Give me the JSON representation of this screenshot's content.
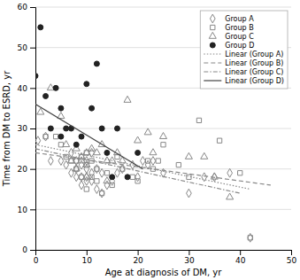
{
  "chart_data": {
    "type": "scatter",
    "xlabel": "Age at diagnosis of DM, yr",
    "ylabel": "Time from DM to ESRD, yr",
    "xlim": [
      0,
      50
    ],
    "ylim": [
      0,
      60
    ],
    "xticks": [
      0,
      10,
      20,
      30,
      40,
      50
    ],
    "yticks": [
      0,
      10,
      20,
      30,
      40,
      50,
      60
    ],
    "grid": true,
    "legend": "upper right",
    "series": [
      {
        "name": "Group A",
        "type": "scatter",
        "marker": "diamond-open",
        "color": "#888888",
        "x": [
          0.5,
          2,
          3,
          5,
          6,
          7,
          7,
          8,
          8,
          8,
          9,
          9,
          9,
          10,
          10,
          10,
          10,
          11,
          11,
          11,
          12,
          12,
          13,
          13,
          14,
          15,
          16,
          17,
          19,
          20,
          21,
          22,
          23,
          25,
          30,
          33,
          35,
          38,
          42
        ],
        "values": [
          27,
          28,
          22,
          22,
          21,
          19,
          24,
          20,
          18,
          22,
          18,
          21,
          16,
          17,
          22,
          18,
          20,
          24,
          19,
          17,
          15,
          20,
          14,
          19,
          16,
          17,
          19,
          20,
          21,
          18,
          22,
          21,
          22,
          19,
          14,
          18,
          18,
          19,
          3
        ]
      },
      {
        "name": "Group B",
        "type": "scatter",
        "marker": "square-open",
        "color": "#888888",
        "x": [
          2,
          4,
          5,
          6,
          7,
          8,
          8,
          9,
          9,
          10,
          10,
          10,
          11,
          11,
          12,
          12,
          13,
          14,
          15,
          16,
          17,
          19,
          20,
          22,
          23,
          24,
          25,
          28,
          30,
          32,
          36,
          40,
          42
        ],
        "values": [
          28,
          28,
          26,
          23,
          22,
          22,
          20,
          23,
          18,
          15,
          21,
          24,
          22,
          18,
          17,
          20,
          14,
          19,
          16,
          23,
          20,
          18,
          17,
          22,
          20,
          22,
          26,
          21,
          18,
          32,
          27,
          19,
          3
        ]
      },
      {
        "name": "Group C",
        "type": "scatter",
        "marker": "triangle-up-open",
        "color": "#888888",
        "x": [
          1,
          3,
          5,
          6,
          7,
          8,
          8,
          9,
          9,
          10,
          10,
          10,
          11,
          12,
          13,
          14,
          14,
          15,
          16,
          17,
          18,
          20,
          22,
          23,
          25,
          30,
          33,
          35,
          38
        ],
        "values": [
          34,
          40,
          33,
          26,
          22,
          25,
          20,
          23,
          22,
          21,
          24,
          18,
          25,
          24,
          26,
          22,
          17,
          22,
          24,
          22,
          37,
          27,
          29,
          24,
          28,
          23,
          23,
          18,
          13
        ]
      },
      {
        "name": "Group D",
        "type": "scatter",
        "marker": "circle",
        "color": "#222222",
        "x": [
          0,
          1,
          2,
          3,
          4,
          5,
          5,
          6,
          7,
          8,
          9,
          10,
          11,
          12,
          13,
          14,
          15,
          16,
          18,
          20
        ],
        "values": [
          43,
          55,
          38,
          30,
          40,
          35,
          28,
          30,
          30,
          26,
          28,
          41,
          35,
          46,
          30,
          24,
          18,
          30,
          18,
          24
        ]
      },
      {
        "name": "Linear (Group A)",
        "type": "line",
        "line_style": "dotted",
        "color": "#888888",
        "x": [
          0,
          42
        ],
        "values": [
          26,
          15
        ]
      },
      {
        "name": "Linear (Group B)",
        "type": "line",
        "line_style": "dashed",
        "color": "#888888",
        "x": [
          0,
          46
        ],
        "values": [
          24,
          16
        ]
      },
      {
        "name": "Linear (Group C)",
        "type": "line",
        "line_style": "dashdot",
        "color": "#888888",
        "x": [
          0,
          40
        ],
        "values": [
          25,
          14
        ]
      },
      {
        "name": "Linear (Group D)",
        "type": "line",
        "line_style": "solid",
        "color": "#444444",
        "x": [
          0,
          21
        ],
        "values": [
          36,
          20
        ]
      }
    ]
  }
}
